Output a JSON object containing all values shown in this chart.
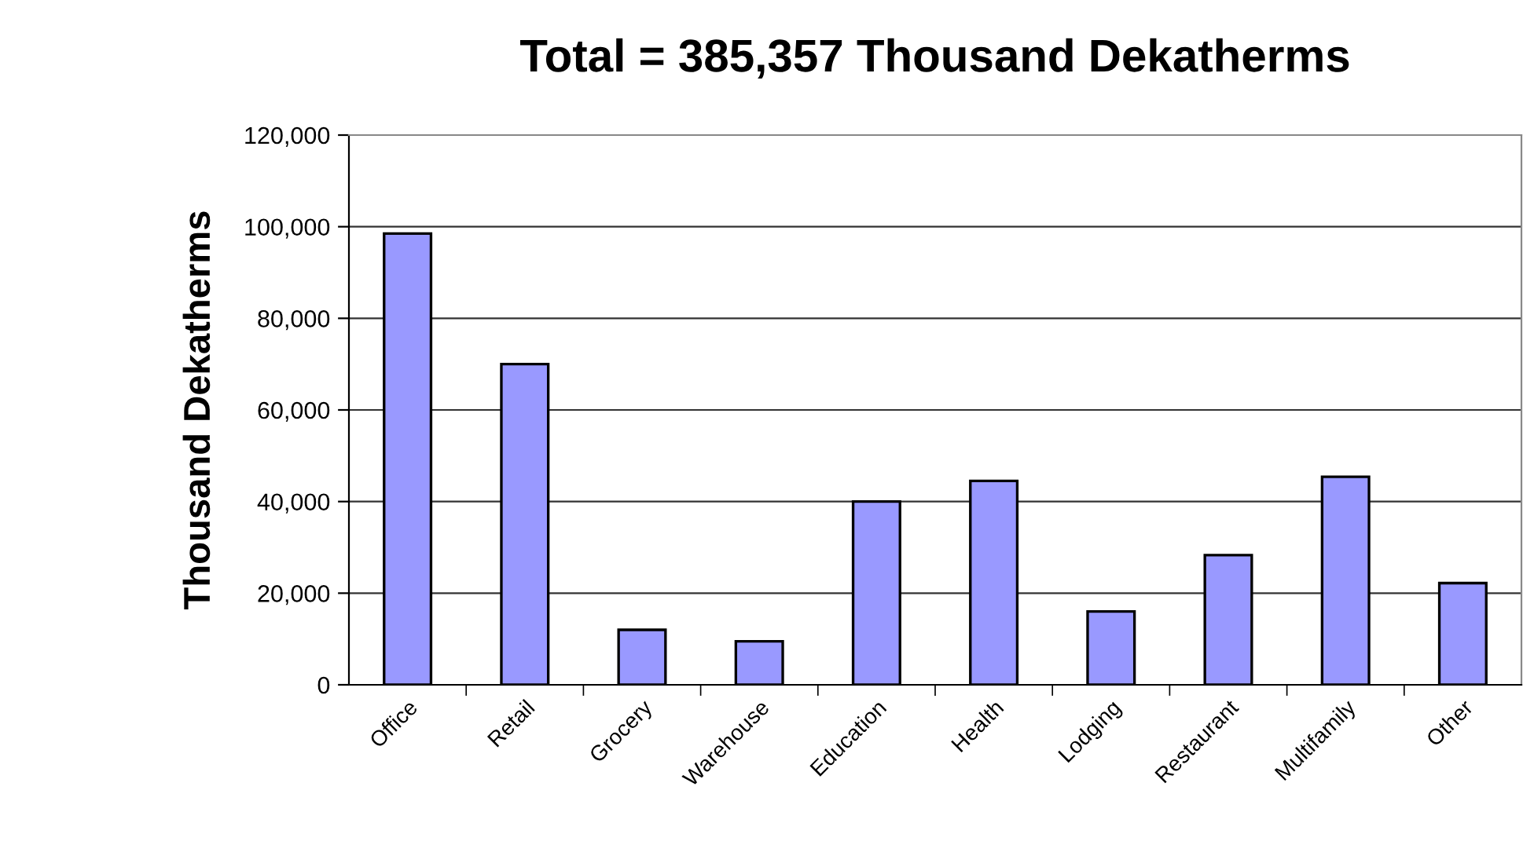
{
  "chart_data": {
    "type": "bar",
    "title": "Total = 385,357 Thousand Dekatherms",
    "ylabel": "Thousand Dekatherms",
    "categories": [
      "Office",
      "Retail",
      "Grocery",
      "Warehouse",
      "Education",
      "Health",
      "Lodging",
      "Restaurant",
      "Multifamily",
      "Other"
    ],
    "values": [
      98500,
      70000,
      12000,
      9500,
      40000,
      44500,
      16000,
      28300,
      45400,
      22200
    ],
    "color": "#9999ff",
    "ylim": [
      0,
      120000
    ],
    "yticks": [
      {
        "value": 0,
        "label": "0"
      },
      {
        "value": 20000,
        "label": "20,000"
      },
      {
        "value": 40000,
        "label": "40,000"
      },
      {
        "value": 60000,
        "label": "60,000"
      },
      {
        "value": 80000,
        "label": "80,000"
      },
      {
        "value": 100000,
        "label": "100,000"
      },
      {
        "value": 120000,
        "label": "120,000"
      }
    ],
    "grid": "y",
    "legend": false
  }
}
